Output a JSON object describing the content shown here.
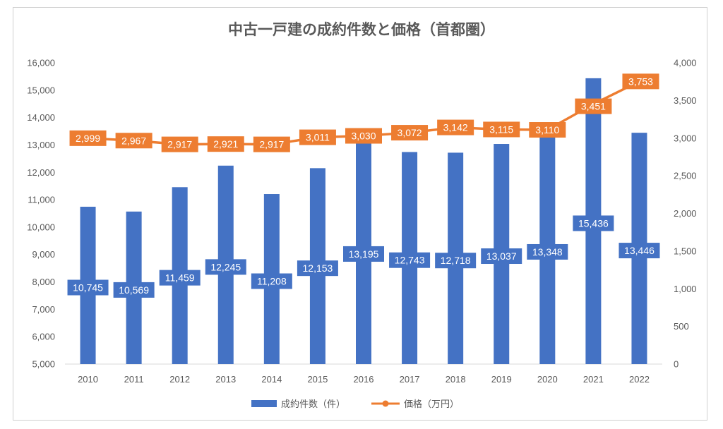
{
  "chart_data": {
    "type": "bar",
    "title": "中古一戸建の成約件数と価格（首都圏）",
    "categories": [
      "2010",
      "2011",
      "2012",
      "2013",
      "2014",
      "2015",
      "2016",
      "2017",
      "2018",
      "2019",
      "2020",
      "2021",
      "2022"
    ],
    "series": [
      {
        "name": "成約件数（件）",
        "type": "bar",
        "axis": "left",
        "color": "#4472c4",
        "values": [
          10745,
          10569,
          11459,
          12245,
          11208,
          12153,
          13195,
          12743,
          12718,
          13037,
          13348,
          15436,
          13446
        ],
        "labels": [
          "10,745",
          "10,569",
          "11,459",
          "12,245",
          "11,208",
          "12,153",
          "13,195",
          "12,743",
          "12,718",
          "13,037",
          "13,348",
          "15,436",
          "13,446"
        ]
      },
      {
        "name": "価格（万円）",
        "type": "line",
        "axis": "right",
        "color": "#ed7d31",
        "values": [
          2999,
          2967,
          2917,
          2921,
          2917,
          3011,
          3030,
          3072,
          3142,
          3115,
          3110,
          3451,
          3753
        ],
        "labels": [
          "2,999",
          "2,967",
          "2,917",
          "2,921",
          "2,917",
          "3,011",
          "3,030",
          "3,072",
          "3,142",
          "3,115",
          "3,110",
          "3,451",
          "3,753"
        ]
      }
    ],
    "y_left": {
      "ylim": [
        5000,
        16000
      ],
      "ticks": [
        "5,000",
        "6,000",
        "7,000",
        "8,000",
        "9,000",
        "10,000",
        "11,000",
        "12,000",
        "13,000",
        "14,000",
        "15,000",
        "16,000"
      ]
    },
    "y_right": {
      "ylim": [
        0,
        4000
      ],
      "ticks": [
        "0",
        "500",
        "1,000",
        "1,500",
        "2,000",
        "2,500",
        "3,000",
        "3,500",
        "4,000"
      ]
    },
    "legend_position": "bottom",
    "grid": false
  }
}
